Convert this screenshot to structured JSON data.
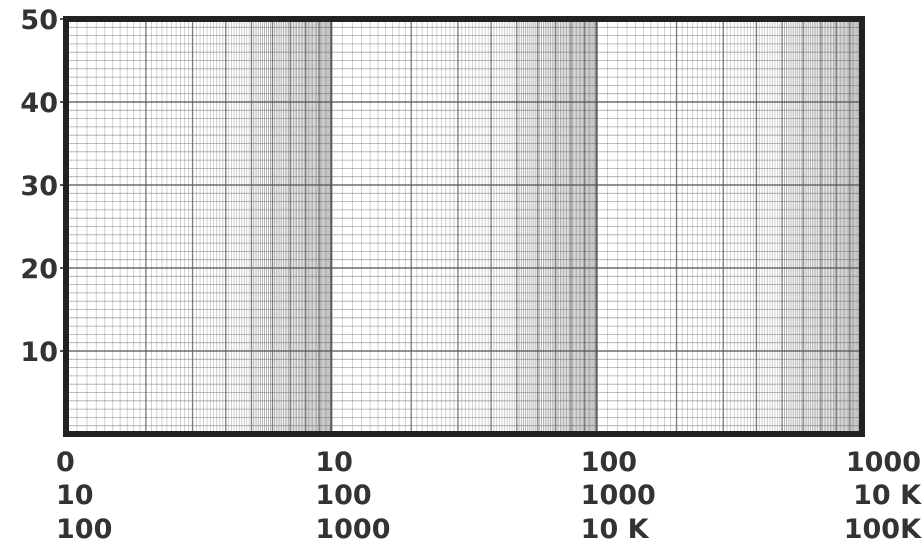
{
  "chart_data": {
    "type": "line",
    "title": "",
    "xlabel": "",
    "ylabel": "",
    "x_scale": "log",
    "decades": 3,
    "ylim": [
      0,
      50
    ],
    "yticks": [
      10,
      20,
      30,
      40,
      50
    ],
    "x_tick_rows": [
      [
        "0",
        "10",
        "100",
        "1000"
      ],
      [
        "10",
        "100",
        "1000",
        "10 K"
      ],
      [
        "100",
        "1000",
        "10 K",
        "100K"
      ]
    ],
    "grid": true,
    "series": []
  },
  "colors": {
    "grid": "#555555",
    "frame": "#222222",
    "text": "#333333"
  }
}
